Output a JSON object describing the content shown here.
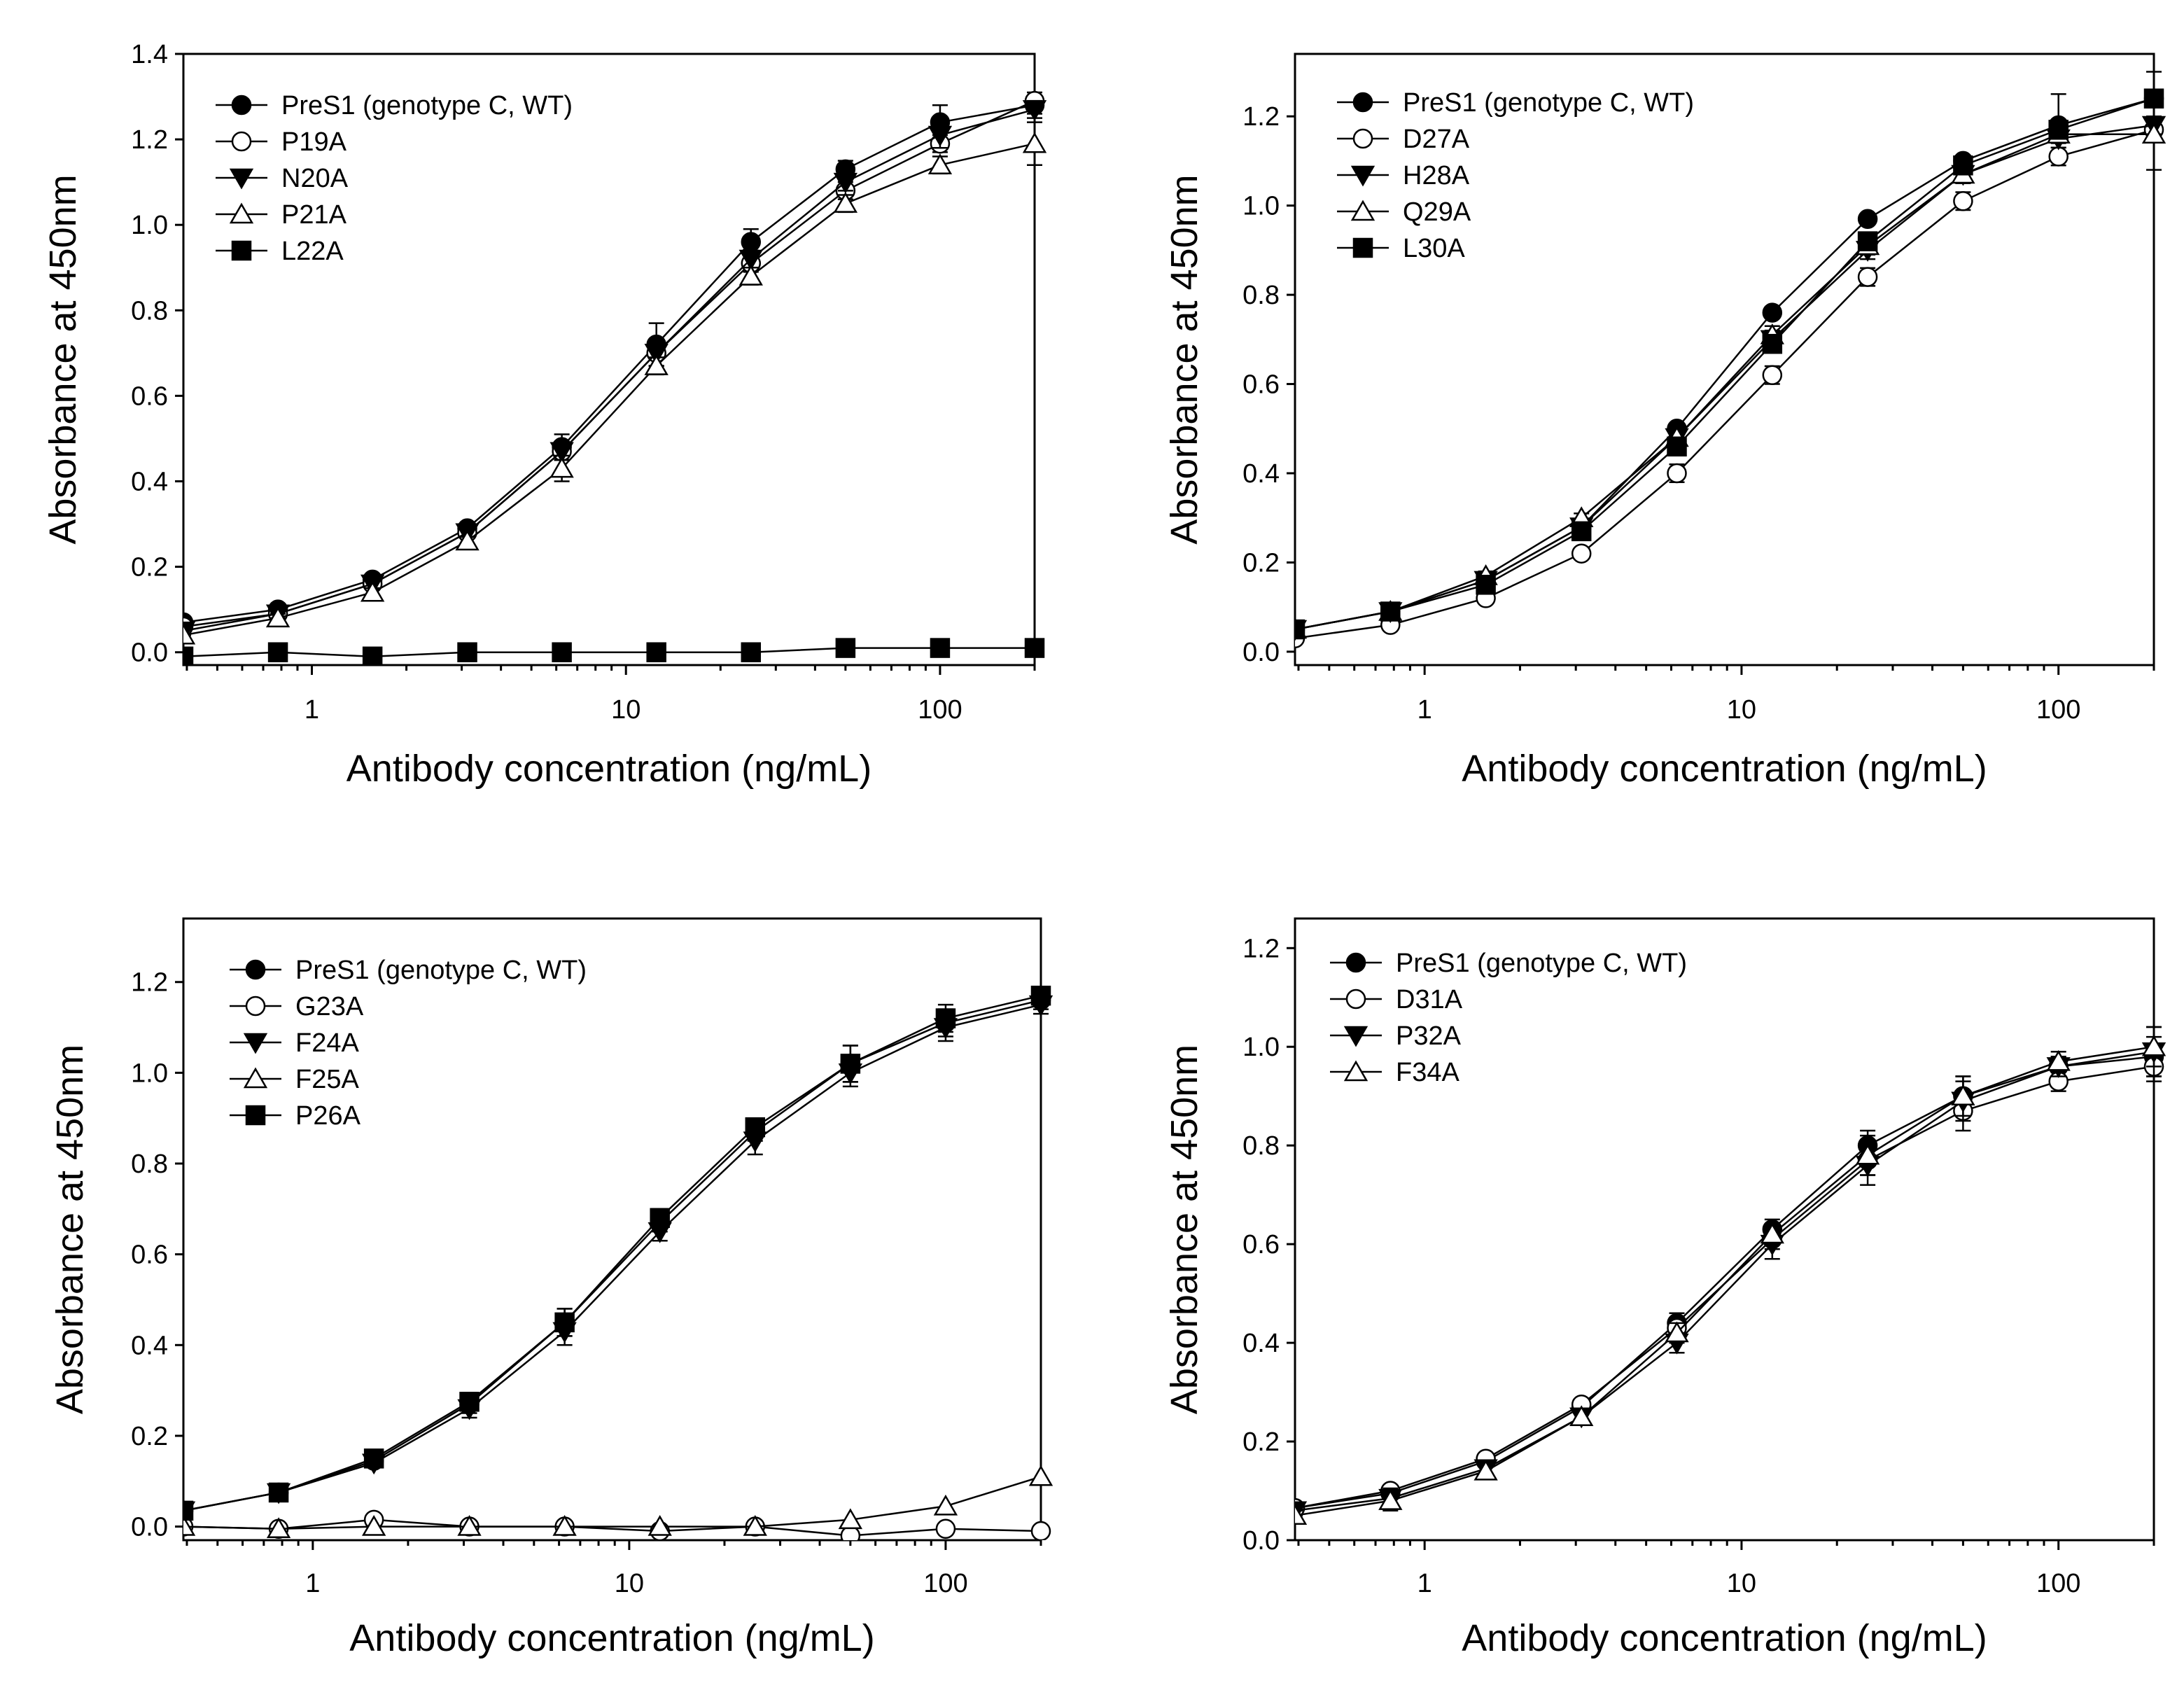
{
  "chart_data": [
    {
      "type": "line",
      "xscale": "log",
      "x": [
        0.39,
        0.78,
        1.56,
        3.125,
        6.25,
        12.5,
        25,
        50,
        100,
        200
      ],
      "xlim": [
        0.39,
        200
      ],
      "ylim": [
        -0.03,
        1.4
      ],
      "yticks": [
        0.0,
        0.2,
        0.4,
        0.6,
        0.8,
        1.0,
        1.2,
        1.4
      ],
      "ytick_labels": [
        "0.0",
        "0.2",
        "0.4",
        "0.6",
        "0.8",
        "1.0",
        "1.2",
        "1.4"
      ],
      "xticks": [
        1,
        10,
        100
      ],
      "xtick_labels": [
        "1",
        "10",
        "100"
      ],
      "xlabel": "Antibody concentration (ng/mL)",
      "ylabel": "Absorbance at 450nm",
      "legend": "top-left",
      "series": [
        {
          "name": "PreS1 (genotype C, WT)",
          "marker": "circle-filled",
          "values": [
            0.07,
            0.1,
            0.17,
            0.29,
            0.48,
            0.72,
            0.96,
            1.13,
            1.24,
            1.28
          ],
          "errors": [
            0.01,
            0.01,
            0.01,
            0.01,
            0.03,
            0.05,
            0.03,
            0.02,
            0.04,
            0.02
          ]
        },
        {
          "name": "P19A",
          "marker": "circle-open",
          "values": [
            0.06,
            0.09,
            0.16,
            0.28,
            0.47,
            0.7,
            0.91,
            1.08,
            1.19,
            1.29
          ],
          "errors": [
            0.01,
            0.01,
            0.01,
            0.01,
            0.02,
            0.03,
            0.02,
            0.02,
            0.02,
            0.02
          ]
        },
        {
          "name": "N20A",
          "marker": "triangle-down-filled",
          "values": [
            0.05,
            0.09,
            0.16,
            0.28,
            0.47,
            0.7,
            0.92,
            1.1,
            1.21,
            1.27
          ],
          "errors": [
            0.01,
            0.01,
            0.01,
            0.01,
            0.02,
            0.03,
            0.02,
            0.02,
            0.03,
            0.02
          ]
        },
        {
          "name": "P21A",
          "marker": "triangle-up-open",
          "values": [
            0.04,
            0.08,
            0.14,
            0.26,
            0.43,
            0.67,
            0.88,
            1.05,
            1.14,
            1.19
          ],
          "errors": [
            0.01,
            0.01,
            0.01,
            0.01,
            0.03,
            0.02,
            0.02,
            0.02,
            0.02,
            0.05
          ]
        },
        {
          "name": "L22A",
          "marker": "square-filled",
          "values": [
            -0.01,
            0.0,
            -0.01,
            0.0,
            0.0,
            0.0,
            0.0,
            0.01,
            0.01,
            0.01
          ],
          "errors": [
            0.0,
            0.0,
            0.0,
            0.0,
            0.0,
            0.0,
            0.0,
            0.0,
            0.0,
            0.0
          ]
        }
      ]
    },
    {
      "type": "line",
      "xscale": "log",
      "x": [
        0.39,
        0.78,
        1.56,
        3.125,
        6.25,
        12.5,
        25,
        50,
        100,
        200
      ],
      "xlim": [
        0.39,
        200
      ],
      "ylim": [
        -0.03,
        1.34
      ],
      "yticks": [
        0.0,
        0.2,
        0.4,
        0.6,
        0.8,
        1.0,
        1.2
      ],
      "ytick_labels": [
        "0.0",
        "0.2",
        "0.4",
        "0.6",
        "0.8",
        "1.0",
        "1.2"
      ],
      "xticks": [
        1,
        10,
        100
      ],
      "xtick_labels": [
        "1",
        "10",
        "100"
      ],
      "xlabel": "Antibody concentration (ng/mL)",
      "ylabel": "Absorbance at 450nm",
      "legend": "top-left",
      "series": [
        {
          "name": "PreS1 (genotype C, WT)",
          "marker": "circle-filled",
          "values": [
            0.05,
            0.09,
            0.16,
            0.28,
            0.5,
            0.76,
            0.97,
            1.1,
            1.18,
            1.24
          ],
          "errors": [
            0.01,
            0.01,
            0.01,
            0.01,
            0.01,
            0.01,
            0.01,
            0.01,
            0.07,
            0.06
          ]
        },
        {
          "name": "D27A",
          "marker": "circle-open",
          "values": [
            0.03,
            0.06,
            0.12,
            0.22,
            0.4,
            0.62,
            0.84,
            1.01,
            1.11,
            1.17
          ],
          "errors": [
            0.01,
            0.01,
            0.01,
            0.01,
            0.02,
            0.02,
            0.02,
            0.02,
            0.02,
            0.02
          ]
        },
        {
          "name": "H28A",
          "marker": "triangle-down-filled",
          "values": [
            0.05,
            0.09,
            0.16,
            0.28,
            0.48,
            0.7,
            0.9,
            1.07,
            1.15,
            1.18
          ],
          "errors": [
            0.01,
            0.01,
            0.01,
            0.01,
            0.02,
            0.02,
            0.02,
            0.02,
            0.02,
            0.02
          ]
        },
        {
          "name": "Q29A",
          "marker": "triangle-up-open",
          "values": [
            0.05,
            0.09,
            0.17,
            0.3,
            0.48,
            0.71,
            0.91,
            1.07,
            1.16,
            1.16
          ],
          "errors": [
            0.01,
            0.01,
            0.01,
            0.01,
            0.02,
            0.02,
            0.02,
            0.02,
            0.02,
            0.08
          ]
        },
        {
          "name": "L30A",
          "marker": "square-filled",
          "values": [
            0.05,
            0.09,
            0.15,
            0.27,
            0.46,
            0.69,
            0.92,
            1.09,
            1.17,
            1.24
          ],
          "errors": [
            0.01,
            0.01,
            0.01,
            0.01,
            0.02,
            0.02,
            0.02,
            0.02,
            0.02,
            0.02
          ]
        }
      ]
    },
    {
      "type": "line",
      "xscale": "log",
      "x": [
        0.39,
        0.78,
        1.56,
        3.125,
        6.25,
        12.5,
        25,
        50,
        100,
        200
      ],
      "xlim": [
        0.39,
        200
      ],
      "ylim": [
        -0.03,
        1.34
      ],
      "yticks": [
        0.0,
        0.2,
        0.4,
        0.6,
        0.8,
        1.0,
        1.2
      ],
      "ytick_labels": [
        "0.0",
        "0.2",
        "0.4",
        "0.6",
        "0.8",
        "1.0",
        "1.2"
      ],
      "xticks": [
        1,
        10,
        100
      ],
      "xtick_labels": [
        "1",
        "10",
        "100"
      ],
      "xlabel": "Antibody concentration (ng/mL)",
      "ylabel": "Absorbance at 450nm",
      "legend": "top-left",
      "series": [
        {
          "name": "PreS1 (genotype C, WT)",
          "marker": "circle-filled",
          "values": [
            0.035,
            0.075,
            0.145,
            0.27,
            0.45,
            0.67,
            0.87,
            1.02,
            1.11,
            1.16
          ],
          "errors": [
            0.01,
            0.01,
            0.01,
            0.02,
            0.03,
            0.02,
            0.02,
            0.04,
            0.03,
            0.02
          ]
        },
        {
          "name": "G23A",
          "marker": "circle-open",
          "values": [
            0.0,
            -0.005,
            0.015,
            0.0,
            0.0,
            -0.01,
            0.0,
            -0.02,
            -0.005,
            -0.01
          ],
          "errors": [
            0.0,
            0.0,
            0.0,
            0.0,
            0.0,
            0.0,
            0.0,
            0.0,
            0.0,
            0.0
          ]
        },
        {
          "name": "F24A",
          "marker": "triangle-down-filled",
          "values": [
            0.035,
            0.075,
            0.14,
            0.26,
            0.43,
            0.65,
            0.85,
            1.0,
            1.1,
            1.15
          ],
          "errors": [
            0.01,
            0.01,
            0.01,
            0.02,
            0.03,
            0.02,
            0.03,
            0.03,
            0.03,
            0.02
          ]
        },
        {
          "name": "F25A",
          "marker": "triangle-up-open",
          "values": [
            0.0,
            -0.005,
            0.0,
            0.0,
            0.0,
            0.0,
            0.0,
            0.015,
            0.045,
            0.11
          ],
          "errors": [
            0.0,
            0.0,
            0.0,
            0.0,
            0.0,
            0.0,
            0.0,
            0.0,
            0.0,
            0.0
          ]
        },
        {
          "name": "P26A",
          "marker": "square-filled",
          "values": [
            0.035,
            0.075,
            0.15,
            0.275,
            0.45,
            0.68,
            0.88,
            1.02,
            1.12,
            1.17
          ],
          "errors": [
            0.01,
            0.01,
            0.01,
            0.02,
            0.03,
            0.02,
            0.02,
            0.04,
            0.03,
            0.02
          ]
        }
      ]
    },
    {
      "type": "line",
      "xscale": "log",
      "x": [
        0.39,
        0.78,
        1.56,
        3.125,
        6.25,
        12.5,
        25,
        50,
        100,
        200
      ],
      "xlim": [
        0.39,
        200
      ],
      "ylim": [
        0.0,
        1.26
      ],
      "yticks": [
        0.0,
        0.2,
        0.4,
        0.6,
        0.8,
        1.0,
        1.2
      ],
      "ytick_labels": [
        "0.0",
        "0.2",
        "0.4",
        "0.6",
        "0.8",
        "1.0",
        "1.2"
      ],
      "xticks": [
        1,
        10,
        100
      ],
      "xtick_labels": [
        "1",
        "10",
        "100"
      ],
      "xlabel": "Antibody concentration (ng/mL)",
      "ylabel": "Absorbance at 450nm",
      "legend": "top-left",
      "series": [
        {
          "name": "PreS1 (genotype C, WT)",
          "marker": "circle-filled",
          "values": [
            0.065,
            0.095,
            0.16,
            0.27,
            0.44,
            0.63,
            0.8,
            0.9,
            0.96,
            0.98
          ],
          "errors": [
            0.01,
            0.01,
            0.01,
            0.01,
            0.02,
            0.02,
            0.03,
            0.04,
            0.02,
            0.04
          ]
        },
        {
          "name": "D31A",
          "marker": "circle-open",
          "values": [
            0.065,
            0.1,
            0.165,
            0.275,
            0.43,
            0.61,
            0.77,
            0.87,
            0.93,
            0.96
          ],
          "errors": [
            0.01,
            0.01,
            0.01,
            0.01,
            0.02,
            0.02,
            0.03,
            0.04,
            0.02,
            0.03
          ]
        },
        {
          "name": "P32A",
          "marker": "triangle-down-filled",
          "values": [
            0.06,
            0.085,
            0.145,
            0.25,
            0.4,
            0.6,
            0.76,
            0.89,
            0.96,
            0.99
          ],
          "errors": [
            0.01,
            0.02,
            0.01,
            0.01,
            0.02,
            0.03,
            0.04,
            0.04,
            0.02,
            0.05
          ]
        },
        {
          "name": "F34A",
          "marker": "triangle-up-open",
          "values": [
            0.05,
            0.08,
            0.14,
            0.25,
            0.42,
            0.62,
            0.78,
            0.9,
            0.97,
            1.0
          ],
          "errors": [
            0.01,
            0.02,
            0.01,
            0.01,
            0.02,
            0.02,
            0.04,
            0.04,
            0.02,
            0.04
          ]
        }
      ]
    }
  ]
}
